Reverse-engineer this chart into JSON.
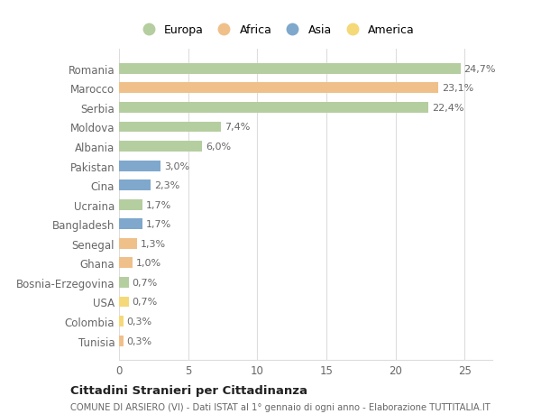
{
  "categories": [
    "Romania",
    "Marocco",
    "Serbia",
    "Moldova",
    "Albania",
    "Pakistan",
    "Cina",
    "Ucraina",
    "Bangladesh",
    "Senegal",
    "Ghana",
    "Bosnia-Erzegovina",
    "USA",
    "Colombia",
    "Tunisia"
  ],
  "values": [
    24.7,
    23.1,
    22.4,
    7.4,
    6.0,
    3.0,
    2.3,
    1.7,
    1.7,
    1.3,
    1.0,
    0.7,
    0.7,
    0.3,
    0.3
  ],
  "labels": [
    "24,7%",
    "23,1%",
    "22,4%",
    "7,4%",
    "6,0%",
    "3,0%",
    "2,3%",
    "1,7%",
    "1,7%",
    "1,3%",
    "1,0%",
    "0,7%",
    "0,7%",
    "0,3%",
    "0,3%"
  ],
  "colors": [
    "#b5ceA0",
    "#f0c08a",
    "#b5ceA0",
    "#b5ceA0",
    "#b5ceA0",
    "#7fa8cc",
    "#7fa8cc",
    "#b5ceA0",
    "#7fa8cc",
    "#f0c08a",
    "#f0c08a",
    "#b5ceA0",
    "#f5d878",
    "#f5d878",
    "#f0c08a"
  ],
  "legend_labels": [
    "Europa",
    "Africa",
    "Asia",
    "America"
  ],
  "legend_colors": [
    "#b5ceA0",
    "#f0c08a",
    "#7fa8cc",
    "#f5d878"
  ],
  "title": "Cittadini Stranieri per Cittadinanza",
  "subtitle": "COMUNE DI ARSIERO (VI) - Dati ISTAT al 1° gennaio di ogni anno - Elaborazione TUTTITALIA.IT",
  "xlim": [
    0,
    27
  ],
  "xticks": [
    0,
    5,
    10,
    15,
    20,
    25
  ],
  "background_color": "#ffffff",
  "grid_color": "#dddddd",
  "label_color": "#666666",
  "bar_height": 0.55
}
